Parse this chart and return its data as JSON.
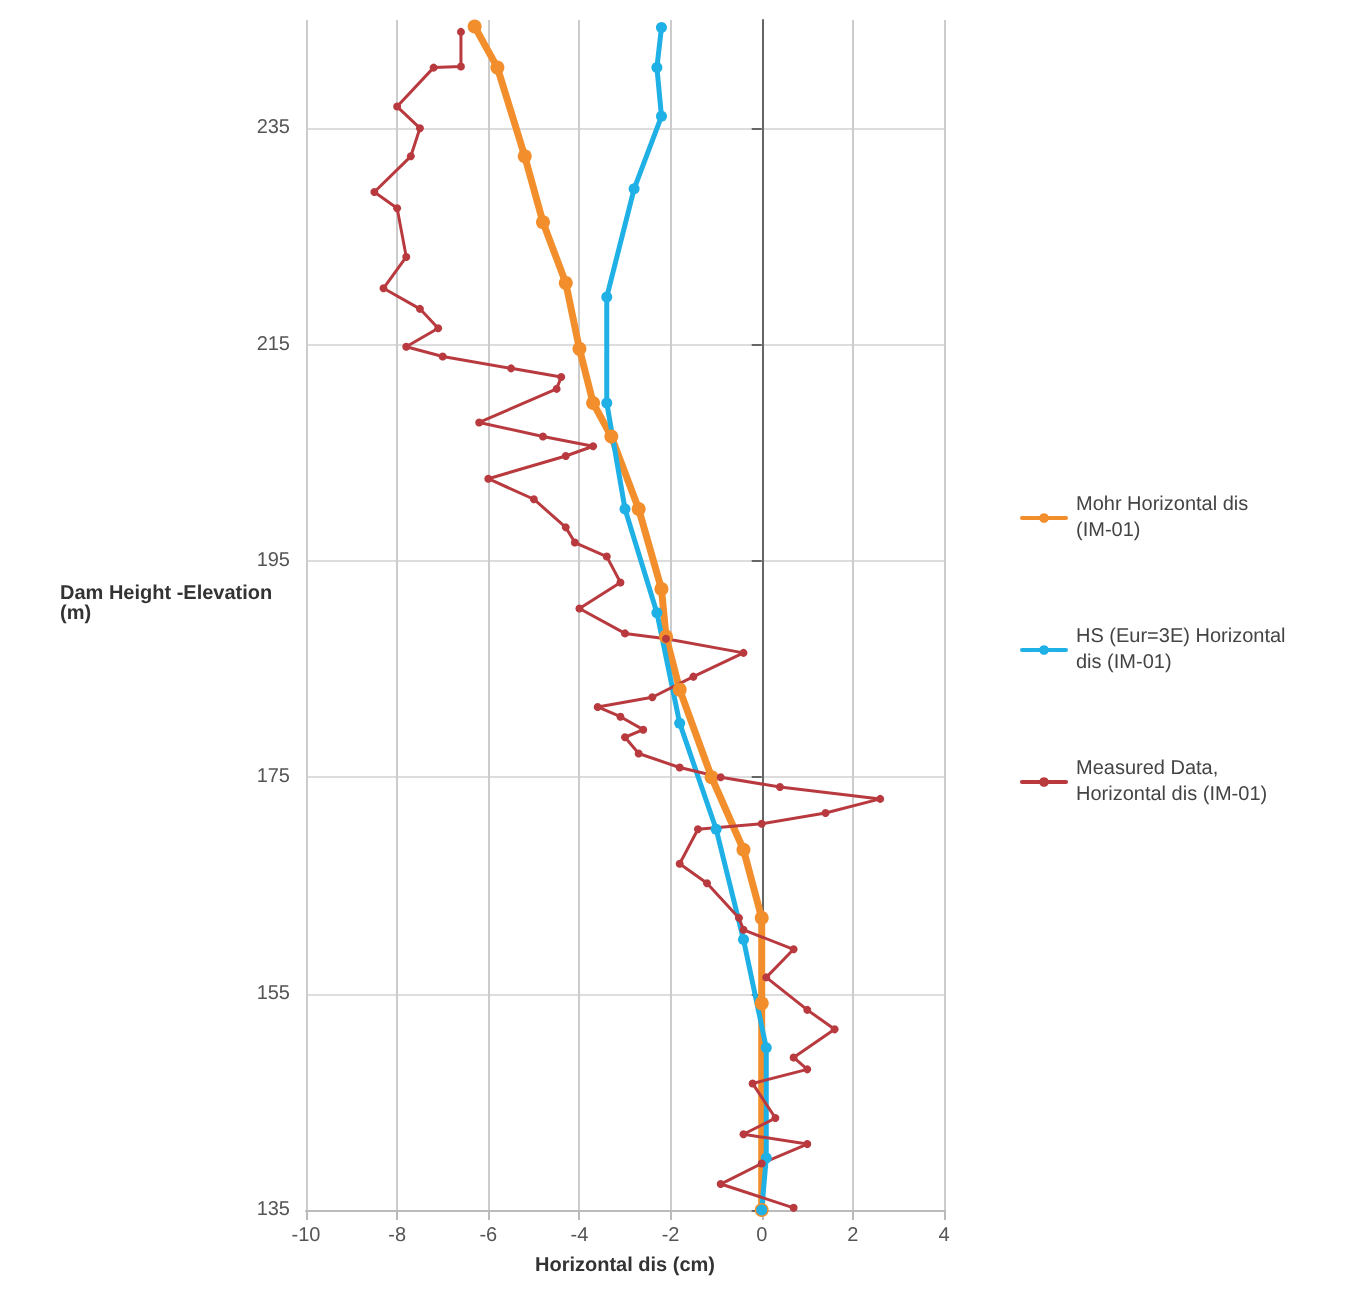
{
  "chart_data": {
    "type": "line",
    "xlabel": "Horizontal dis (cm)",
    "ylabel": "Dam Height -Elevation (m)",
    "xlim": [
      -10,
      4
    ],
    "xticks": [
      -10,
      -8,
      -6,
      -4,
      -2,
      0,
      2,
      4
    ],
    "ylim": [
      135,
      245
    ],
    "yticks": [
      135,
      155,
      175,
      195,
      215,
      235
    ],
    "grid": true,
    "legend": "right",
    "marker": "circle",
    "series": [
      {
        "name": "Mohr Horizontal dis (IM-01)",
        "color": "#f28e2b",
        "x": [
          -6.3,
          -5.8,
          -5.2,
          -4.8,
          -4.3,
          -4.0,
          -3.7,
          -3.3,
          -2.7,
          -2.2,
          -2.1,
          -1.8,
          -1.1,
          -0.4,
          0,
          0,
          0
        ],
        "values": [
          244.4,
          240.6,
          232.4,
          226.3,
          220.7,
          214.6,
          209.6,
          206.5,
          199.8,
          192.4,
          188.0,
          183.1,
          175.0,
          168.3,
          162.0,
          154.1,
          135
        ]
      },
      {
        "name": "HS (Eur=3E) Horizontal dis (IM-01)",
        "color": "#1fb0e6",
        "x": [
          -2.2,
          -2.3,
          -2.2,
          -2.8,
          -3.4,
          -3.4,
          -3.0,
          -2.3,
          -1.8,
          -1.0,
          -0.4,
          0.1,
          0.1,
          0
        ],
        "values": [
          244.3,
          240.6,
          236.1,
          229.4,
          219.4,
          209.6,
          199.8,
          190.2,
          180.0,
          170.2,
          160.0,
          150.0,
          139.8,
          135
        ]
      },
      {
        "name": "Measured Data, Horizontal dis (IM-01)",
        "color": "#b83a3f",
        "x": [
          -6.6,
          -6.6,
          -7.2,
          -8.0,
          -7.5,
          -7.7,
          -8.5,
          -8.0,
          -7.8,
          -8.3,
          -7.5,
          -7.1,
          -7.8,
          -7.0,
          -5.5,
          -4.4,
          -4.5,
          -6.2,
          -4.8,
          -3.7,
          -4.3,
          -6.0,
          -5.0,
          -4.3,
          -4.1,
          -3.4,
          -3.1,
          -4.0,
          -3.0,
          -2.1,
          -0.4,
          -1.5,
          -2.4,
          -3.6,
          -3.1,
          -2.6,
          -3.0,
          -2.7,
          -1.8,
          -0.9,
          0.4,
          2.6,
          1.4,
          0,
          -1.4,
          -1.8,
          -1.2,
          -0.5,
          -0.4,
          0.7,
          0.1,
          1.0,
          1.6,
          0.7,
          1.0,
          -0.2,
          0.3,
          -0.4,
          1.0,
          0,
          -0.9,
          0.7
        ],
        "values": [
          243.9,
          240.7,
          240.6,
          237.0,
          235.0,
          232.4,
          229.1,
          227.6,
          223.1,
          220.2,
          218.3,
          216.5,
          214.8,
          213.9,
          212.8,
          212.0,
          210.9,
          207.8,
          206.5,
          205.6,
          204.7,
          202.6,
          200.7,
          198.1,
          196.7,
          195.4,
          193.0,
          190.6,
          188.3,
          187.8,
          186.5,
          184.3,
          182.4,
          181.5,
          180.6,
          179.4,
          178.7,
          177.2,
          175.9,
          175.0,
          174.1,
          173.0,
          171.7,
          170.7,
          170.2,
          167.0,
          165.2,
          162.0,
          160.9,
          159.1,
          156.5,
          153.5,
          151.7,
          149.1,
          148.0,
          146.7,
          143.5,
          142.0,
          141.1,
          139.3,
          137.4,
          135.2
        ]
      }
    ]
  }
}
